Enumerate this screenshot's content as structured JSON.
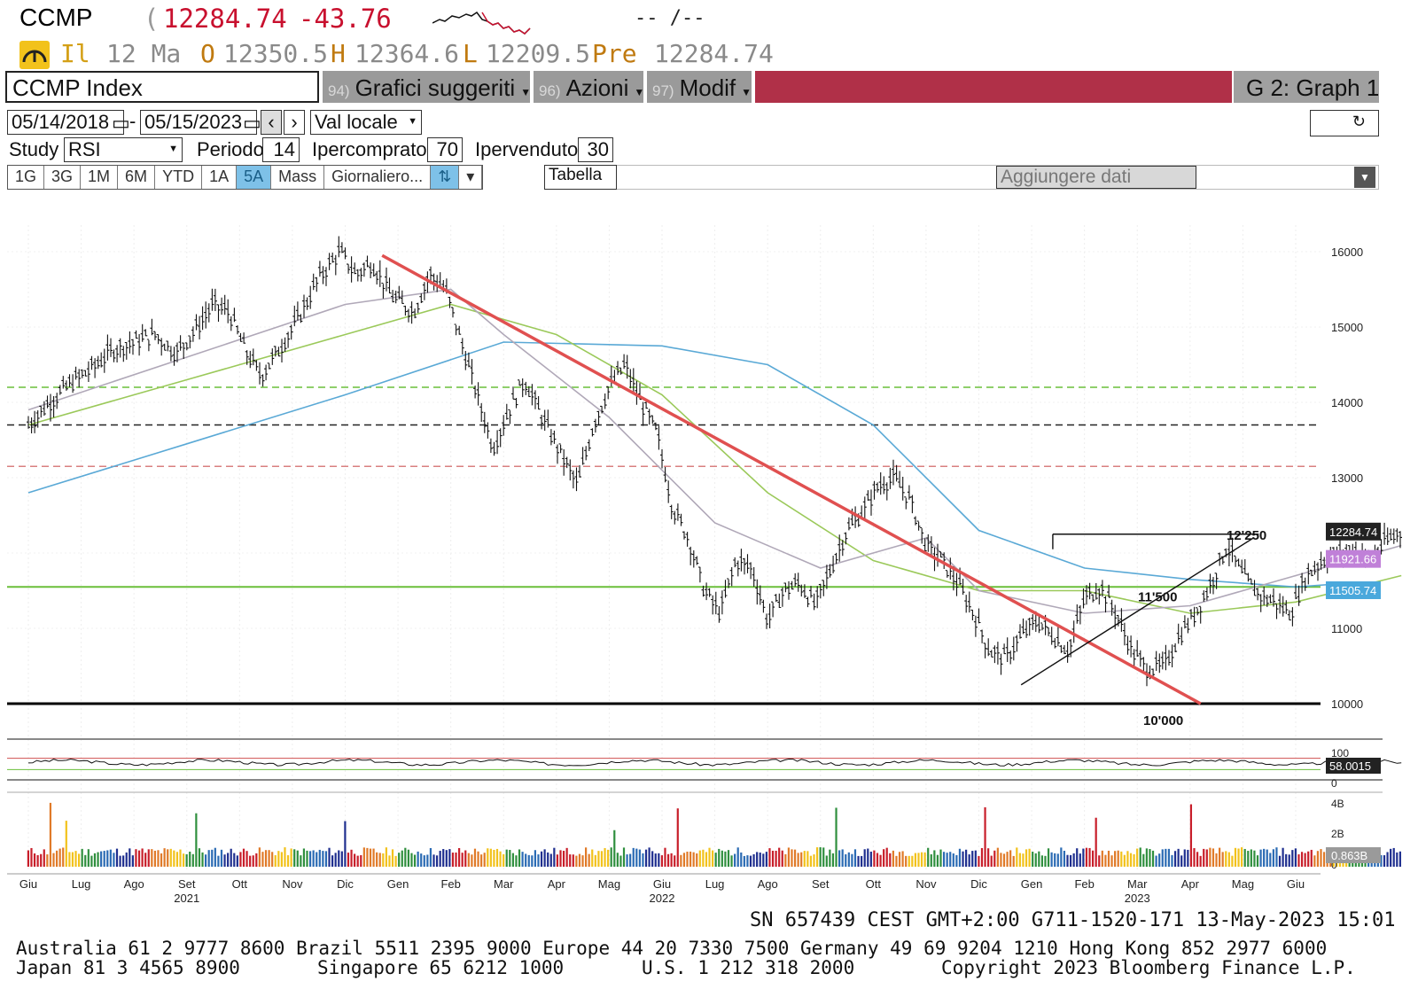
{
  "header": {
    "ticker": "CCMP",
    "paren": "(",
    "last": "12284.74",
    "change": "-43.76",
    "time_range": "-- /--",
    "trend_icon": "speed-gauge-icon",
    "il": "Il",
    "date": "12 Ma",
    "o_label": "O",
    "open": "12350.5",
    "h_label": "H",
    "high": "12364.6",
    "l_label": "L",
    "low": "12209.5",
    "pre_label": "Pre",
    "prev": "12284.74"
  },
  "toolbar": {
    "security": "CCMP Index",
    "menu1_num": "94)",
    "menu1": "Grafici suggeriti",
    "menu2_num": "96)",
    "menu2": "Azioni",
    "menu3_num": "97)",
    "menu3": "Modif",
    "graph": "G 2: Graph 1"
  },
  "controls": {
    "date_from": "05/14/2018",
    "date_to": "05/15/2023",
    "currency": "Val locale",
    "study_label": "Study",
    "study": "RSI",
    "period_label": "Periodo",
    "period": "14",
    "overbought_label": "Ipercomprato",
    "overbought": "70",
    "oversold_label": "Ipervenduto",
    "oversold": "30",
    "tabs": [
      "1G",
      "3G",
      "1M",
      "6M",
      "YTD",
      "1A",
      "5A",
      "Mass",
      "Giornaliero..."
    ],
    "active_tab": "5A",
    "table_label": "Tabella",
    "add_data_placeholder": "Aggiungere dati"
  },
  "chart_data": {
    "type": "line",
    "price_axis": {
      "min": 10000,
      "max": 16000,
      "ticks": [
        "16000",
        "15000",
        "14000",
        "13000",
        "11000",
        "10000"
      ]
    },
    "month_labels": [
      "Giu",
      "Lug",
      "Ago",
      "Set",
      "Ott",
      "Nov",
      "Dic",
      "Gen",
      "Feb",
      "Mar",
      "Apr",
      "Mag",
      "Giu",
      "Lug",
      "Ago",
      "Set",
      "Ott",
      "Nov",
      "Dic",
      "Gen",
      "Feb",
      "Mar",
      "Apr",
      "Mag",
      "Giu"
    ],
    "year_labels": [
      {
        "label": "2021",
        "month_index": 3
      },
      {
        "label": "2022",
        "month_index": 12
      },
      {
        "label": "2023",
        "month_index": 21
      }
    ],
    "price_series": [
      [
        0,
        13700
      ],
      [
        0.4,
        14000
      ],
      [
        0.8,
        14250
      ],
      [
        1.2,
        14450
      ],
      [
        1.6,
        14700
      ],
      [
        2.0,
        14800
      ],
      [
        2.4,
        14900
      ],
      [
        2.8,
        14650
      ],
      [
        3.2,
        15000
      ],
      [
        3.5,
        15300
      ],
      [
        3.8,
        15200
      ],
      [
        4.1,
        14700
      ],
      [
        4.4,
        14350
      ],
      [
        4.7,
        14650
      ],
      [
        5.1,
        15100
      ],
      [
        5.5,
        15650
      ],
      [
        5.9,
        16000
      ],
      [
        6.2,
        15700
      ],
      [
        6.5,
        15850
      ],
      [
        6.9,
        15400
      ],
      [
        7.3,
        15200
      ],
      [
        7.6,
        15700
      ],
      [
        7.9,
        15500
      ],
      [
        8.2,
        14800
      ],
      [
        8.5,
        14100
      ],
      [
        8.8,
        13400
      ],
      [
        9.1,
        13900
      ],
      [
        9.4,
        14300
      ],
      [
        9.8,
        13700
      ],
      [
        10.1,
        13300
      ],
      [
        10.4,
        12900
      ],
      [
        10.7,
        13700
      ],
      [
        11.0,
        14200
      ],
      [
        11.3,
        14500
      ],
      [
        11.6,
        14000
      ],
      [
        11.9,
        13600
      ],
      [
        12.2,
        12600
      ],
      [
        12.5,
        12200
      ],
      [
        12.8,
        11500
      ],
      [
        13.1,
        11200
      ],
      [
        13.4,
        11900
      ],
      [
        13.7,
        11800
      ],
      [
        14.0,
        11100
      ],
      [
        14.3,
        11500
      ],
      [
        14.6,
        11600
      ],
      [
        14.9,
        11300
      ],
      [
        15.2,
        11800
      ],
      [
        15.5,
        12300
      ],
      [
        15.8,
        12550
      ],
      [
        16.1,
        12900
      ],
      [
        16.4,
        13000
      ],
      [
        16.7,
        12700
      ],
      [
        17.0,
        12100
      ],
      [
        17.3,
        11900
      ],
      [
        17.6,
        11600
      ],
      [
        17.9,
        11200
      ],
      [
        18.2,
        10700
      ],
      [
        18.5,
        10600
      ],
      [
        18.8,
        10900
      ],
      [
        19.1,
        11100
      ],
      [
        19.4,
        10900
      ],
      [
        19.7,
        10700
      ],
      [
        20.0,
        11400
      ],
      [
        20.3,
        11550
      ],
      [
        20.6,
        11200
      ],
      [
        20.9,
        10700
      ],
      [
        21.2,
        10450
      ],
      [
        21.5,
        10500
      ],
      [
        21.8,
        10900
      ],
      [
        22.1,
        11200
      ],
      [
        22.4,
        11600
      ],
      [
        22.7,
        12100
      ],
      [
        23.0,
        11700
      ],
      [
        23.3,
        11450
      ],
      [
        23.6,
        11350
      ],
      [
        23.9,
        11200
      ],
      [
        24.2,
        11700
      ],
      [
        24.5,
        11900
      ],
      [
        24.8,
        12000
      ],
      [
        25.1,
        12050
      ],
      [
        25.4,
        11900
      ],
      [
        25.7,
        12150
      ],
      [
        26.0,
        12284.74
      ]
    ],
    "ma_series": [
      {
        "name": "",
        "color": "#5aa9d6",
        "points": [
          [
            0,
            12800
          ],
          [
            3,
            13450
          ],
          [
            6,
            14100
          ],
          [
            9,
            14800
          ],
          [
            12,
            14750
          ],
          [
            14,
            14500
          ],
          [
            16,
            13700
          ],
          [
            18,
            12300
          ],
          [
            20,
            11800
          ],
          [
            22,
            11650
          ],
          [
            24,
            11550
          ],
          [
            25,
            11600
          ]
        ]
      },
      {
        "name": "",
        "color": "#9bc95a",
        "points": [
          [
            0,
            13700
          ],
          [
            3,
            14300
          ],
          [
            6,
            14900
          ],
          [
            8,
            15300
          ],
          [
            10,
            14900
          ],
          [
            12,
            14100
          ],
          [
            14,
            12800
          ],
          [
            16,
            11900
          ],
          [
            18,
            11500
          ],
          [
            20,
            11500
          ],
          [
            22,
            11200
          ],
          [
            24,
            11350
          ],
          [
            26,
            11700
          ]
        ]
      },
      {
        "name": "",
        "color": "#b0a8b8",
        "points": [
          [
            0,
            13900
          ],
          [
            3,
            14600
          ],
          [
            6,
            15300
          ],
          [
            8,
            15500
          ],
          [
            9,
            14900
          ],
          [
            11,
            13800
          ],
          [
            13,
            12400
          ],
          [
            15,
            11800
          ],
          [
            17,
            12200
          ],
          [
            18,
            11500
          ],
          [
            20,
            11200
          ],
          [
            22,
            11300
          ],
          [
            24,
            11700
          ],
          [
            26,
            12100
          ]
        ]
      }
    ],
    "horizontal_levels": [
      {
        "value": 14200,
        "color": "#6abf3a",
        "style": "dashed"
      },
      {
        "value": 13700,
        "color": "#222222",
        "style": "dashed"
      },
      {
        "value": 13150,
        "color": "#d98080",
        "style": "dashed"
      },
      {
        "value": 11550,
        "color": "#6abf3a",
        "style": "solid"
      },
      {
        "value": 10000,
        "color": "#000000",
        "style": "solid"
      }
    ],
    "annotations": [
      {
        "label": "12'250",
        "value": 12250
      },
      {
        "label": "11'500",
        "value": 11500
      },
      {
        "label": "10'000",
        "value": 10000
      }
    ],
    "price_tags": [
      {
        "label": "12284.74",
        "value": 12284.74,
        "bg": "#222222"
      },
      {
        "label": "11921.66",
        "value": 11921.66,
        "bg": "#c080d8"
      },
      {
        "label": "11505.74",
        "value": 11505.74,
        "bg": "#4aa8dc"
      }
    ],
    "rsi": {
      "label_top": "100",
      "label_bottom": "0",
      "value": "58.0015",
      "overbought": 70,
      "oversold": 30
    },
    "volume": {
      "ticks": [
        "4B",
        "2B",
        "0"
      ],
      "value": "0.863B"
    }
  },
  "footer": {
    "session": "SN 657439 CEST GMT+2:00 G711-1520-171 13-May-2023 15:01",
    "line1": "Australia 61 2 9777 8600 Brazil 5511 2395 9000 Europe 44 20 7330 7500 Germany 49 69 9204 1210 Hong Kong 852 2977 6000",
    "line2a": "Japan 81 3 4565 8900",
    "line2b": "Singapore 65 6212 1000",
    "line2c": "U.S. 1 212 318 2000",
    "line2d": "Copyright 2023 Bloomberg Finance L.P."
  }
}
